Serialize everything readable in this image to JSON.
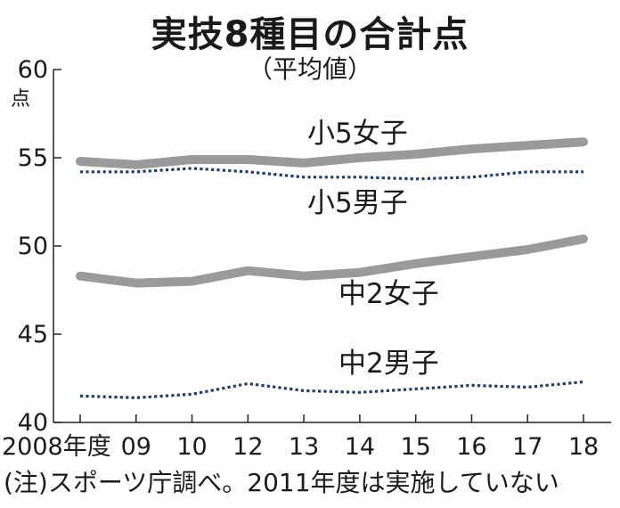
{
  "header": {
    "title": "実技8種目の合計点",
    "subtitle": "（平均値）"
  },
  "note": "(注)スポーツ庁調べ。2011年度は実施していない",
  "chart_data": {
    "type": "line",
    "title": "実技8種目の合計点",
    "subtitle": "（平均値）",
    "ylabel": "点",
    "ylim": [
      40,
      60
    ],
    "yticks": [
      60,
      55,
      50,
      45,
      40
    ],
    "categories": [
      "2008年度",
      "09",
      "10",
      "12",
      "13",
      "14",
      "15",
      "16",
      "17",
      "18"
    ],
    "series": [
      {
        "name": "小5女子",
        "style": "solid",
        "color": "#9a9a9a",
        "values": [
          54.8,
          54.6,
          54.9,
          54.9,
          54.7,
          55.0,
          55.2,
          55.5,
          55.7,
          55.9
        ]
      },
      {
        "name": "小5男子",
        "style": "dotted",
        "color": "#1f3a6b",
        "values": [
          54.2,
          54.2,
          54.4,
          54.2,
          53.9,
          53.9,
          53.8,
          53.9,
          54.2,
          54.2
        ]
      },
      {
        "name": "中2女子",
        "style": "solid",
        "color": "#9a9a9a",
        "values": [
          48.3,
          47.9,
          48.0,
          48.6,
          48.3,
          48.5,
          49.0,
          49.4,
          49.8,
          50.4
        ]
      },
      {
        "name": "中2男子",
        "style": "dotted",
        "color": "#1f3a6b",
        "values": [
          41.5,
          41.4,
          41.6,
          42.2,
          41.8,
          41.7,
          41.9,
          42.1,
          42.0,
          42.3
        ]
      }
    ]
  }
}
